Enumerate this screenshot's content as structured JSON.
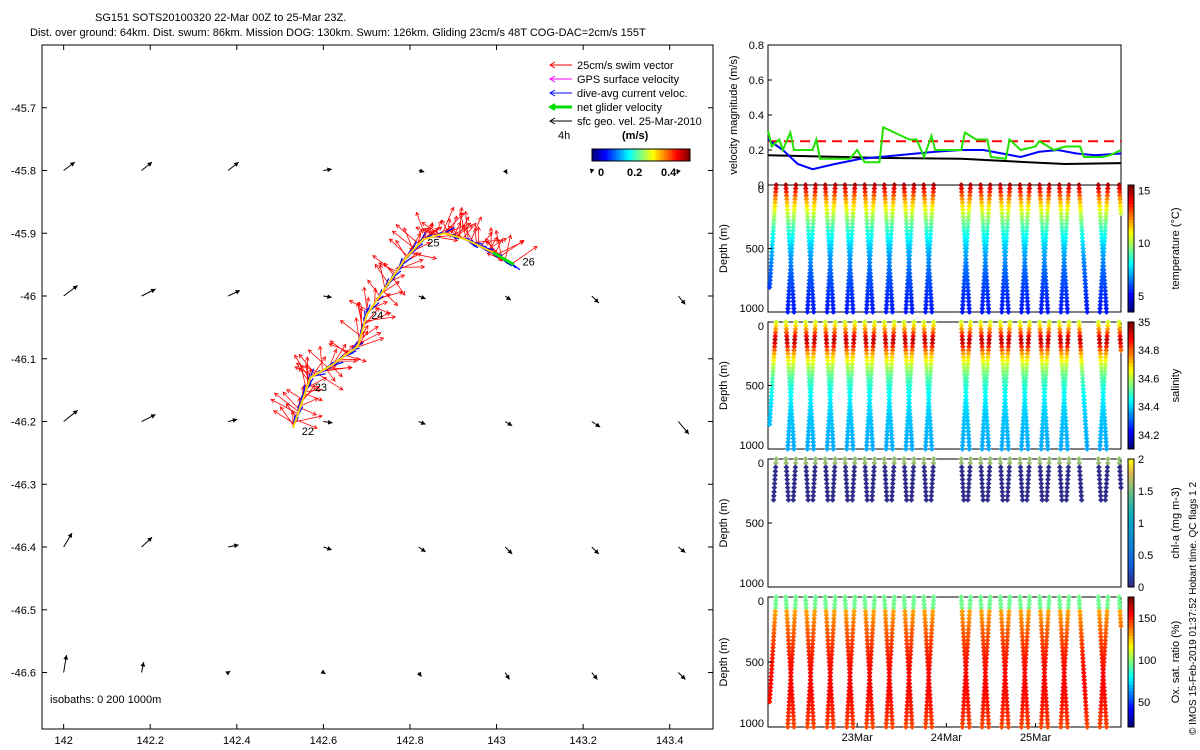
{
  "header": {
    "line1": "SG151 SOTS20100320 22-Mar 00Z to 25-Mar 23Z.",
    "line2": "Dist. over ground: 64km. Dist. swum: 86km. Mission DOG: 130km. Swum: 126km. Gliding 23cm/s 48T COG-DAC=2cm/s 155T"
  },
  "side_label": "© IMOS 15-Feb-2019 01:37:52 Hobart time. QC flags 1  2",
  "colors": {
    "swim": "#ff0000",
    "gps": "#ff00ff",
    "dac": "#0000ff",
    "net": "#00dd00",
    "geo": "#000000",
    "track": "#ffd400"
  },
  "chart_data": [
    {
      "id": "map",
      "type": "scatter",
      "xlim": [
        141.95,
        143.5
      ],
      "ylim": [
        -46.69,
        -45.6
      ],
      "x_ticks": [
        142,
        142.2,
        142.4,
        142.6,
        142.8,
        143,
        143.2,
        143.4
      ],
      "x_tick_labels": [
        "142",
        "142.2",
        "142.4",
        "142.6",
        "142.8",
        "143",
        "143.2",
        "143.4"
      ],
      "y_ticks": [
        -45.7,
        -45.8,
        -45.9,
        -46,
        -46.1,
        -46.2,
        -46.3,
        -46.4,
        -46.5,
        -46.6
      ],
      "y_tick_labels": [
        "-45.7",
        "-45.8",
        "-45.9",
        "-46",
        "-46.1",
        "-46.2",
        "-46.3",
        "-46.4",
        "-46.5",
        "-46.6"
      ],
      "legend": [
        {
          "label": "25cm/s swim vector",
          "color": "#ff0000"
        },
        {
          "label": "GPS surface velocity",
          "color": "#ff00ff"
        },
        {
          "label": "dive-avg current veloc.",
          "color": "#0000ff"
        },
        {
          "label": "net glider velocity",
          "color": "#00dd00"
        },
        {
          "label": "sfc geo. vel. 25-Mar-2010",
          "color": "#000000"
        }
      ],
      "legend_position": "top-right",
      "scale_label": "4h",
      "colorbar": {
        "title": "(m/s)",
        "ticks": [
          "0",
          "0.2",
          "0.4"
        ],
        "range": [
          0,
          0.45
        ]
      },
      "isobaths_label": "isobaths: 0   200  1000m",
      "track": [
        {
          "lon": 142.53,
          "lat": -46.21
        },
        {
          "lon": 142.55,
          "lat": -46.17
        },
        {
          "lon": 142.57,
          "lat": -46.13
        },
        {
          "lon": 142.62,
          "lat": -46.11
        },
        {
          "lon": 142.68,
          "lat": -46.08
        },
        {
          "lon": 142.7,
          "lat": -46.03
        },
        {
          "lon": 142.75,
          "lat": -45.98
        },
        {
          "lon": 142.79,
          "lat": -45.94
        },
        {
          "lon": 142.83,
          "lat": -45.91
        },
        {
          "lon": 142.88,
          "lat": -45.9
        },
        {
          "lon": 142.93,
          "lat": -45.91
        },
        {
          "lon": 142.99,
          "lat": -45.93
        },
        {
          "lon": 143.04,
          "lat": -45.95
        }
      ],
      "day_labels": [
        {
          "label": "22",
          "lon": 142.55,
          "lat": -46.215
        },
        {
          "label": "23",
          "lon": 142.58,
          "lat": -46.145
        },
        {
          "label": "24",
          "lon": 142.71,
          "lat": -46.03
        },
        {
          "label": "25",
          "lon": 142.84,
          "lat": -45.915
        },
        {
          "label": "26",
          "lon": 143.06,
          "lat": -45.945
        }
      ],
      "geo_vectors": {
        "lons": [
          142.0,
          142.18,
          142.38,
          142.6,
          142.82,
          143.02,
          143.22,
          143.42
        ],
        "lats": [
          -45.8,
          -46.0,
          -46.2,
          -46.4,
          -46.6
        ],
        "u": [
          [
            0.16,
            0.15,
            0.15,
            0.12,
            0.08,
            0.03,
            -0.01,
            -0.02
          ],
          [
            0.2,
            0.2,
            0.17,
            0.12,
            0.1,
            0.08,
            0.1,
            0.1
          ],
          [
            0.2,
            0.2,
            0.13,
            0.13,
            0.1,
            0.1,
            0.12,
            0.15
          ],
          [
            0.12,
            0.15,
            0.15,
            0.12,
            0.1,
            0.1,
            0.1,
            0.1
          ],
          [
            0.04,
            0.03,
            0.03,
            0.03,
            0.04,
            0.06,
            0.08,
            0.1
          ]
        ],
        "v": [
          [
            0.12,
            0.12,
            0.12,
            0.02,
            -0.02,
            -0.05,
            -0.04,
            -0.05
          ],
          [
            0.15,
            0.1,
            0.08,
            -0.02,
            -0.04,
            -0.06,
            -0.1,
            -0.12
          ],
          [
            0.16,
            0.1,
            0.03,
            -0.02,
            -0.04,
            -0.06,
            -0.08,
            -0.18
          ],
          [
            0.2,
            0.14,
            0.03,
            -0.04,
            -0.07,
            -0.1,
            -0.1,
            -0.08
          ],
          [
            0.25,
            0.15,
            0.02,
            -0.02,
            -0.06,
            -0.1,
            -0.1,
            -0.1
          ]
        ]
      }
    },
    {
      "id": "velocity",
      "type": "line",
      "ylabel": "velocity magnitude (m/s)",
      "ylim": [
        0,
        0.8
      ],
      "y_ticks": [
        0,
        0.2,
        0.4,
        0.6,
        0.8
      ],
      "y_tick_labels": [
        "0",
        "0.2",
        "0.4",
        "0.6",
        "0.8"
      ],
      "x_range_hours": [
        0,
        95
      ],
      "series": [
        {
          "color": "#ff0000",
          "style": "dashed",
          "points": [
            [
              0,
              0.25
            ],
            [
              95,
              0.25
            ]
          ]
        },
        {
          "color": "#000000",
          "style": "solid",
          "points": [
            [
              0,
              0.17
            ],
            [
              30,
              0.155
            ],
            [
              52,
              0.15
            ],
            [
              70,
              0.13
            ],
            [
              80,
              0.12
            ],
            [
              95,
              0.125
            ]
          ]
        },
        {
          "color": "#0000ff",
          "style": "solid",
          "points": [
            [
              0,
              0.26
            ],
            [
              4,
              0.2
            ],
            [
              8,
              0.12
            ],
            [
              12,
              0.09
            ],
            [
              18,
              0.12
            ],
            [
              25,
              0.15
            ],
            [
              35,
              0.17
            ],
            [
              45,
              0.19
            ],
            [
              52,
              0.2
            ],
            [
              58,
              0.2
            ],
            [
              63,
              0.18
            ],
            [
              68,
              0.16
            ],
            [
              73,
              0.19
            ],
            [
              78,
              0.2
            ],
            [
              83,
              0.18
            ],
            [
              88,
              0.17
            ],
            [
              95,
              0.18
            ]
          ]
        },
        {
          "color": "#22e000",
          "style": "solid",
          "points": [
            [
              0,
              0.31
            ],
            [
              1,
              0.22
            ],
            [
              3,
              0.26
            ],
            [
              4,
              0.2
            ],
            [
              6,
              0.3
            ],
            [
              7,
              0.2
            ],
            [
              12,
              0.2
            ],
            [
              13,
              0.26
            ],
            [
              14,
              0.15
            ],
            [
              22,
              0.15
            ],
            [
              24,
              0.2
            ],
            [
              26,
              0.13
            ],
            [
              30,
              0.13
            ],
            [
              31,
              0.33
            ],
            [
              34,
              0.3
            ],
            [
              38,
              0.26
            ],
            [
              40,
              0.26
            ],
            [
              42,
              0.16
            ],
            [
              44,
              0.28
            ],
            [
              45,
              0.2
            ],
            [
              50,
              0.2
            ],
            [
              52,
              0.2
            ],
            [
              53,
              0.3
            ],
            [
              56,
              0.26
            ],
            [
              59,
              0.26
            ],
            [
              60,
              0.16
            ],
            [
              64,
              0.15
            ],
            [
              65,
              0.26
            ],
            [
              68,
              0.2
            ],
            [
              72,
              0.22
            ],
            [
              73,
              0.25
            ],
            [
              77,
              0.2
            ],
            [
              80,
              0.22
            ],
            [
              84,
              0.22
            ],
            [
              85,
              0.16
            ],
            [
              90,
              0.16
            ],
            [
              92,
              0.17
            ],
            [
              95,
              0.2
            ]
          ]
        }
      ]
    },
    {
      "id": "temperature",
      "type": "scatter",
      "ylabel": "Depth (m)",
      "y_ticks": [
        0,
        500,
        1000
      ],
      "y_tick_labels": [
        "0",
        "500",
        "1000"
      ],
      "ylim": [
        1000,
        0
      ],
      "x_range_hours": [
        0,
        95
      ],
      "colorbar": {
        "label": "temperature (°C)",
        "range": [
          3.5,
          15.5
        ],
        "ticks": [
          "15",
          "10",
          "5"
        ],
        "tick_values": [
          15,
          10,
          5
        ]
      },
      "profile": {
        "surface": 15,
        "bottom": 4.5
      }
    },
    {
      "id": "salinity",
      "type": "scatter",
      "ylabel": "Depth (m)",
      "y_ticks": [
        0,
        500,
        1000
      ],
      "y_tick_labels": [
        "0",
        "500",
        "1000"
      ],
      "ylim": [
        1000,
        0
      ],
      "x_range_hours": [
        0,
        95
      ],
      "colorbar": {
        "label": "salinity",
        "range": [
          34.1,
          35.0
        ],
        "ticks": [
          "35",
          "34.8",
          "34.6",
          "34.4",
          "34.2"
        ],
        "tick_values": [
          35,
          34.8,
          34.6,
          34.4,
          34.2
        ]
      },
      "profile": {
        "surface": 34.62,
        "max": 34.97,
        "bottom": 34.35
      }
    },
    {
      "id": "chla",
      "type": "scatter",
      "ylabel": "Depth (m)",
      "y_ticks": [
        0,
        500,
        1000
      ],
      "y_tick_labels": [
        "0",
        "500",
        "1000"
      ],
      "ylim": [
        1000,
        0
      ],
      "x_range_hours": [
        0,
        95
      ],
      "colorbar": {
        "label": "chl-a (mg m-3)",
        "range": [
          0,
          2
        ],
        "ticks": [
          "2",
          "1.5",
          "1",
          "0.5",
          "0"
        ],
        "tick_values": [
          2,
          1.5,
          1,
          0.5,
          0
        ]
      },
      "profile": {
        "surface": 1.6,
        "deep": 0.02,
        "max_depth": 320
      }
    },
    {
      "id": "oxygen",
      "type": "scatter",
      "ylabel": "Depth (m)",
      "y_ticks": [
        0,
        500,
        1000
      ],
      "y_tick_labels": [
        "0",
        "500",
        "1000"
      ],
      "ylim": [
        1000,
        0
      ],
      "x_range_hours": [
        0,
        95
      ],
      "x_ticks_hours": [
        24,
        48,
        72
      ],
      "x_tick_labels": [
        "23Mar",
        "24Mar",
        "25Mar"
      ],
      "colorbar": {
        "label": "Ox. sat. ratio (%)",
        "range": [
          20,
          175
        ],
        "ticks": [
          "150",
          "100",
          "50"
        ],
        "tick_values": [
          150,
          100,
          50
        ]
      },
      "profile": {
        "surface": 95,
        "mid": 155,
        "bottom": 130
      }
    }
  ],
  "dives": {
    "up_times": [
      2.2,
      7.5,
      12.8,
      18.1,
      23.4,
      28.7,
      34.0,
      39.3,
      44.6,
      54.5,
      59.8,
      65.1,
      70.4,
      75.7,
      81.0,
      91.5
    ],
    "down_times": [
      4.8,
      10.1,
      15.4,
      20.7,
      26.0,
      31.3,
      36.6,
      41.9,
      52.0,
      57.2,
      62.5,
      67.8,
      73.1,
      78.4,
      83.7,
      88.9,
      94.5
    ],
    "left_edge": 0.4
  }
}
